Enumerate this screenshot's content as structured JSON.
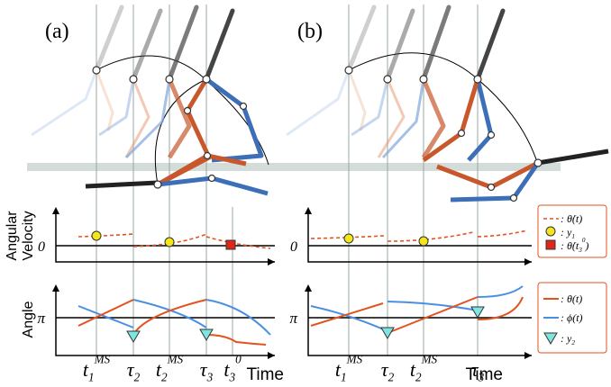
{
  "panels": [
    {
      "label": "(a)",
      "x_ticks": [
        [
          {
            "text": "t"
          },
          {
            "text": "1",
            "pos": "sub"
          },
          {
            "text": "MS",
            "pos": "sup"
          }
        ],
        [
          {
            "text": "τ"
          },
          {
            "text": "2",
            "pos": "sub"
          }
        ],
        [
          {
            "text": "t"
          },
          {
            "text": "2",
            "pos": "sub"
          },
          {
            "text": "MS",
            "pos": "sup"
          }
        ],
        [
          {
            "text": "τ"
          },
          {
            "text": "3",
            "pos": "sub"
          }
        ],
        [
          {
            "text": "t"
          },
          {
            "text": "3",
            "pos": "sub"
          },
          {
            "text": "0",
            "pos": "sup"
          }
        ]
      ],
      "x_axis_label": "Time",
      "velocity_zero": "0",
      "angle_pi": "π"
    },
    {
      "label": "(b)",
      "x_ticks": [
        [
          {
            "text": "t"
          },
          {
            "text": "1",
            "pos": "sub"
          },
          {
            "text": "MS",
            "pos": "sup"
          }
        ],
        [
          {
            "text": "τ"
          },
          {
            "text": "2",
            "pos": "sub"
          }
        ],
        [
          {
            "text": "t"
          },
          {
            "text": "2",
            "pos": "sub"
          },
          {
            "text": "MS",
            "pos": "sup"
          }
        ],
        [
          {
            "text": "τ"
          },
          {
            "text": "3",
            "pos": "sub"
          }
        ]
      ],
      "x_axis_label": "Time",
      "velocity_zero": "0",
      "angle_pi": "π"
    }
  ],
  "y_axis_labels": {
    "velocity": [
      "Angular",
      "Velocity"
    ],
    "angle": "Angle"
  },
  "legend_velocity": [
    [
      {
        "text": ": θ̇(t)"
      }
    ],
    [
      {
        "text": ": y"
      },
      {
        "text": "1",
        "pos": "sub"
      }
    ],
    [
      {
        "text": ": θ̇(t"
      },
      {
        "text": "3",
        "pos": "sub"
      },
      {
        "text": "0",
        "pos": "sup"
      },
      {
        "text": ")"
      }
    ]
  ],
  "legend_angle": [
    [
      {
        "text": ": θ(t)"
      }
    ],
    [
      {
        "text": ": ϕ(t)"
      }
    ],
    [
      {
        "text": ": y"
      },
      {
        "text": "2",
        "pos": "sub"
      }
    ]
  ]
}
